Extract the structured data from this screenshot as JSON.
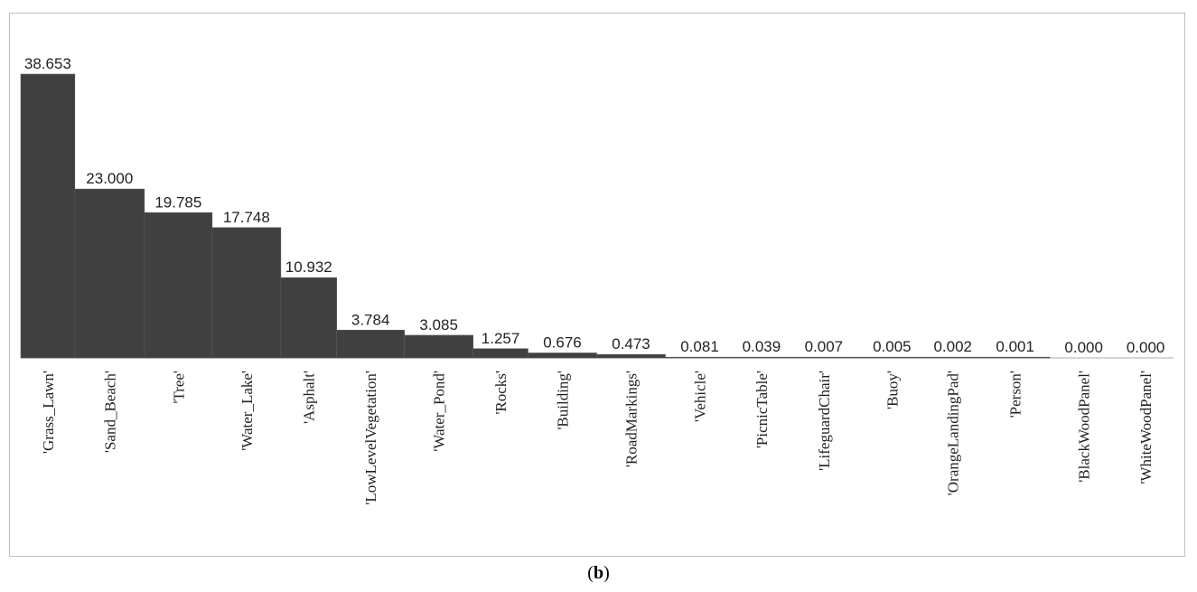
{
  "chart_data": {
    "type": "bar",
    "categories": [
      "'Grass_Lawn'",
      "'Sand_Beach'",
      "'Tree'",
      "'Water_Lake'",
      "'Asphalt'",
      "'LowLevelVegetation'",
      "'Water_Pond'",
      "'Rocks'",
      "'Building'",
      "'RoadMarkings'",
      "'Vehicle'",
      "'PicnicTable'",
      "'LifeguardChair'",
      "'Buoy'",
      "'OrangeLandingPad'",
      "'Person'",
      "'BlackWoodPanel'",
      "'WhiteWoodPanel'"
    ],
    "values": [
      38.653,
      23.0,
      19.785,
      17.748,
      10.932,
      3.784,
      3.085,
      1.257,
      0.676,
      0.473,
      0.081,
      0.039,
      0.007,
      0.005,
      0.002,
      0.001,
      0.0,
      0.0
    ],
    "value_labels": [
      "38.653",
      "23.000",
      "19.785",
      "17.748",
      "10.932",
      "3.784",
      "3.085",
      "1.257",
      "0.676",
      "0.473",
      "0.081",
      "0.039",
      "0.007",
      "0.005",
      "0.002",
      "0.001",
      "0.000",
      "0.000"
    ],
    "bar_widths_relative": [
      59,
      76,
      74,
      75,
      61,
      74,
      75,
      60,
      75,
      75,
      75,
      60,
      76,
      73,
      60,
      76,
      74,
      61
    ],
    "ylim": [
      0,
      38.653
    ],
    "bar_color": "#404040",
    "axis_color": "#c8c8c8",
    "grid": false,
    "legend": "none"
  },
  "caption": {
    "open": "(",
    "letter": "b",
    "close": ")"
  }
}
